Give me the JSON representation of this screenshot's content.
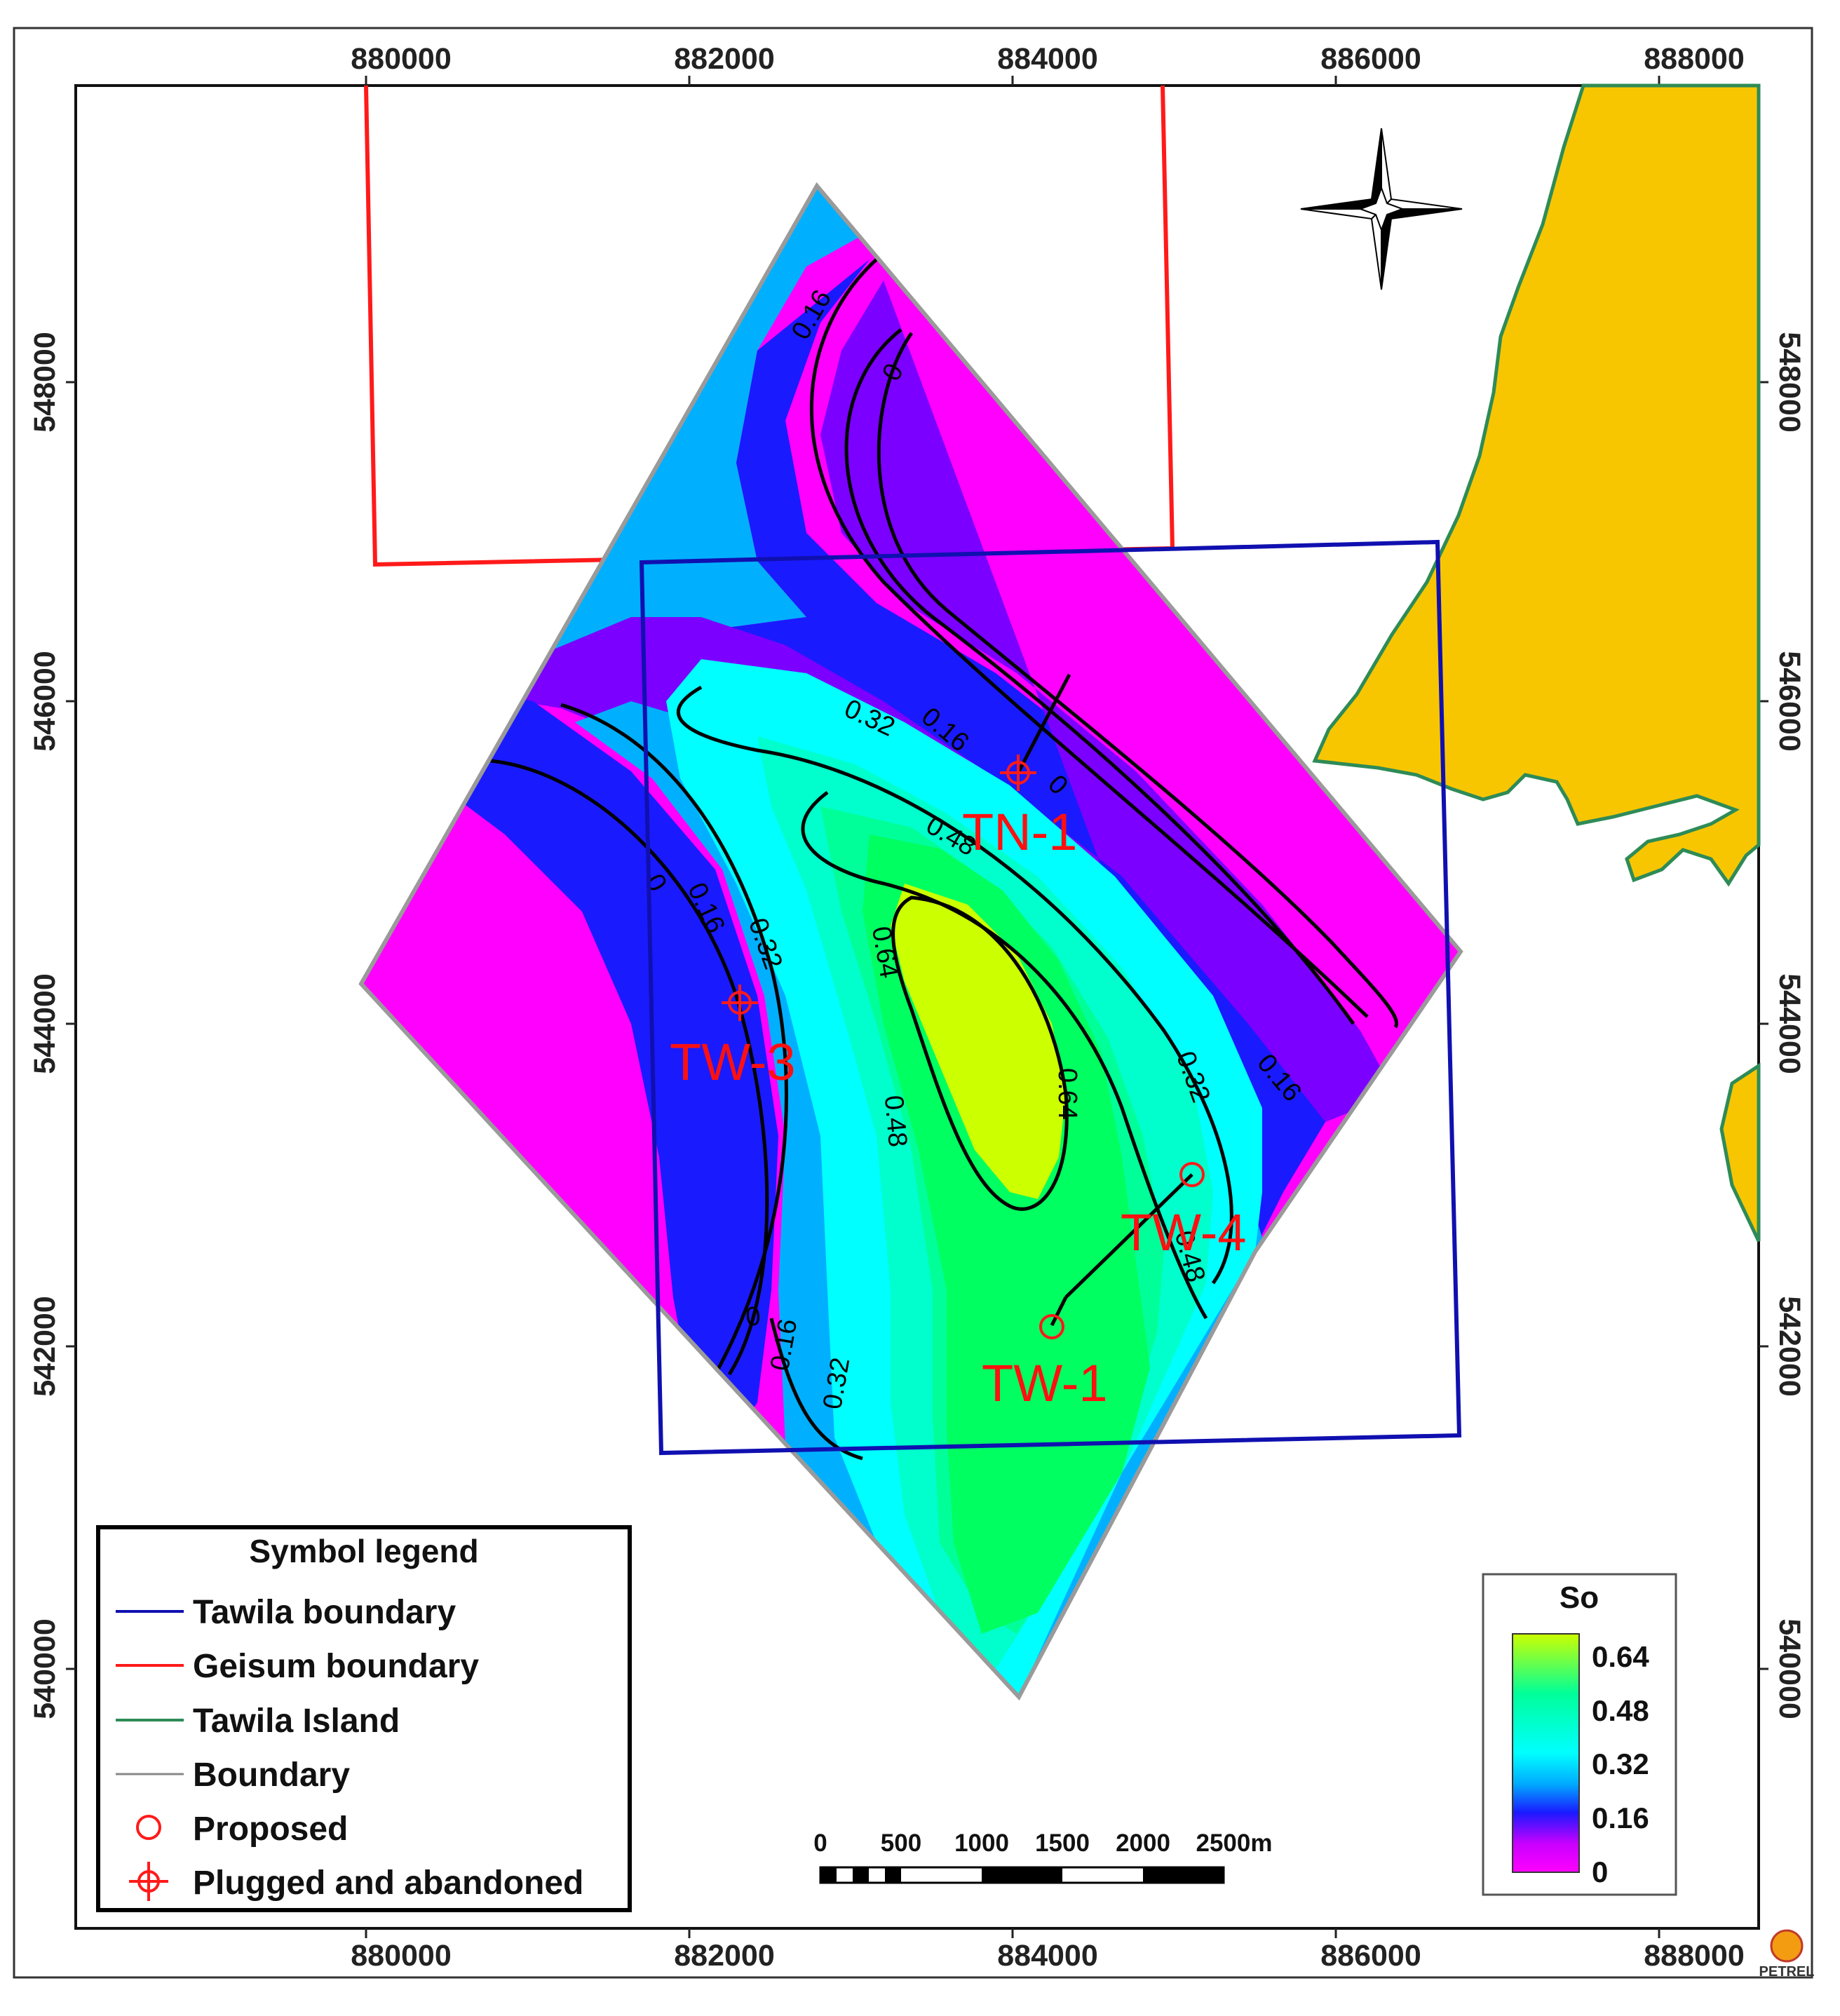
{
  "axes": {
    "x_ticks": [
      "880000",
      "882000",
      "884000",
      "886000",
      "888000"
    ],
    "y_ticks": [
      "548000",
      "546000",
      "544000",
      "542000",
      "540000"
    ]
  },
  "surface": {
    "property": "So",
    "contour_levels": [
      "0",
      "0.16",
      "0.32",
      "0.48",
      "0.64"
    ]
  },
  "wells": [
    {
      "name": "TN-1",
      "status": "Plugged and abandoned"
    },
    {
      "name": "TW-3",
      "status": "Plugged and abandoned"
    },
    {
      "name": "TW-4",
      "status": "Proposed"
    },
    {
      "name": "TW-1",
      "status": "Proposed"
    }
  ],
  "legend": {
    "title": "Symbol legend",
    "items": [
      {
        "label": "Tawila boundary",
        "color": "#1010b0"
      },
      {
        "label": "Geisum boundary",
        "color": "#ff1a1a"
      },
      {
        "label": "Tawila Island",
        "color": "#2e8b57"
      },
      {
        "label": "Boundary",
        "color": "#888888"
      },
      {
        "label": "Proposed",
        "color": "#ff1a1a"
      },
      {
        "label": "Plugged and abandoned",
        "color": "#ff1a1a"
      }
    ]
  },
  "scalebar": {
    "labels": [
      "0",
      "500",
      "1000",
      "1500",
      "2000",
      "2500m"
    ]
  },
  "colorbar": {
    "title": "So",
    "ticks": [
      "0.64",
      "0.48",
      "0.32",
      "0.16",
      "0"
    ],
    "colors": {
      "low": "#ff00ff",
      "mid_low": "#1a1aff",
      "mid": "#00ffff",
      "mid_high": "#00ff99",
      "high": "#ccff00"
    }
  },
  "brand": "PETREL",
  "colors": {
    "island": "#f7c600",
    "island_outline": "#2e8b57",
    "tawila_boundary": "#1010b0",
    "geisum_boundary": "#ff1a1a",
    "well_marker": "#ff1a1a"
  }
}
